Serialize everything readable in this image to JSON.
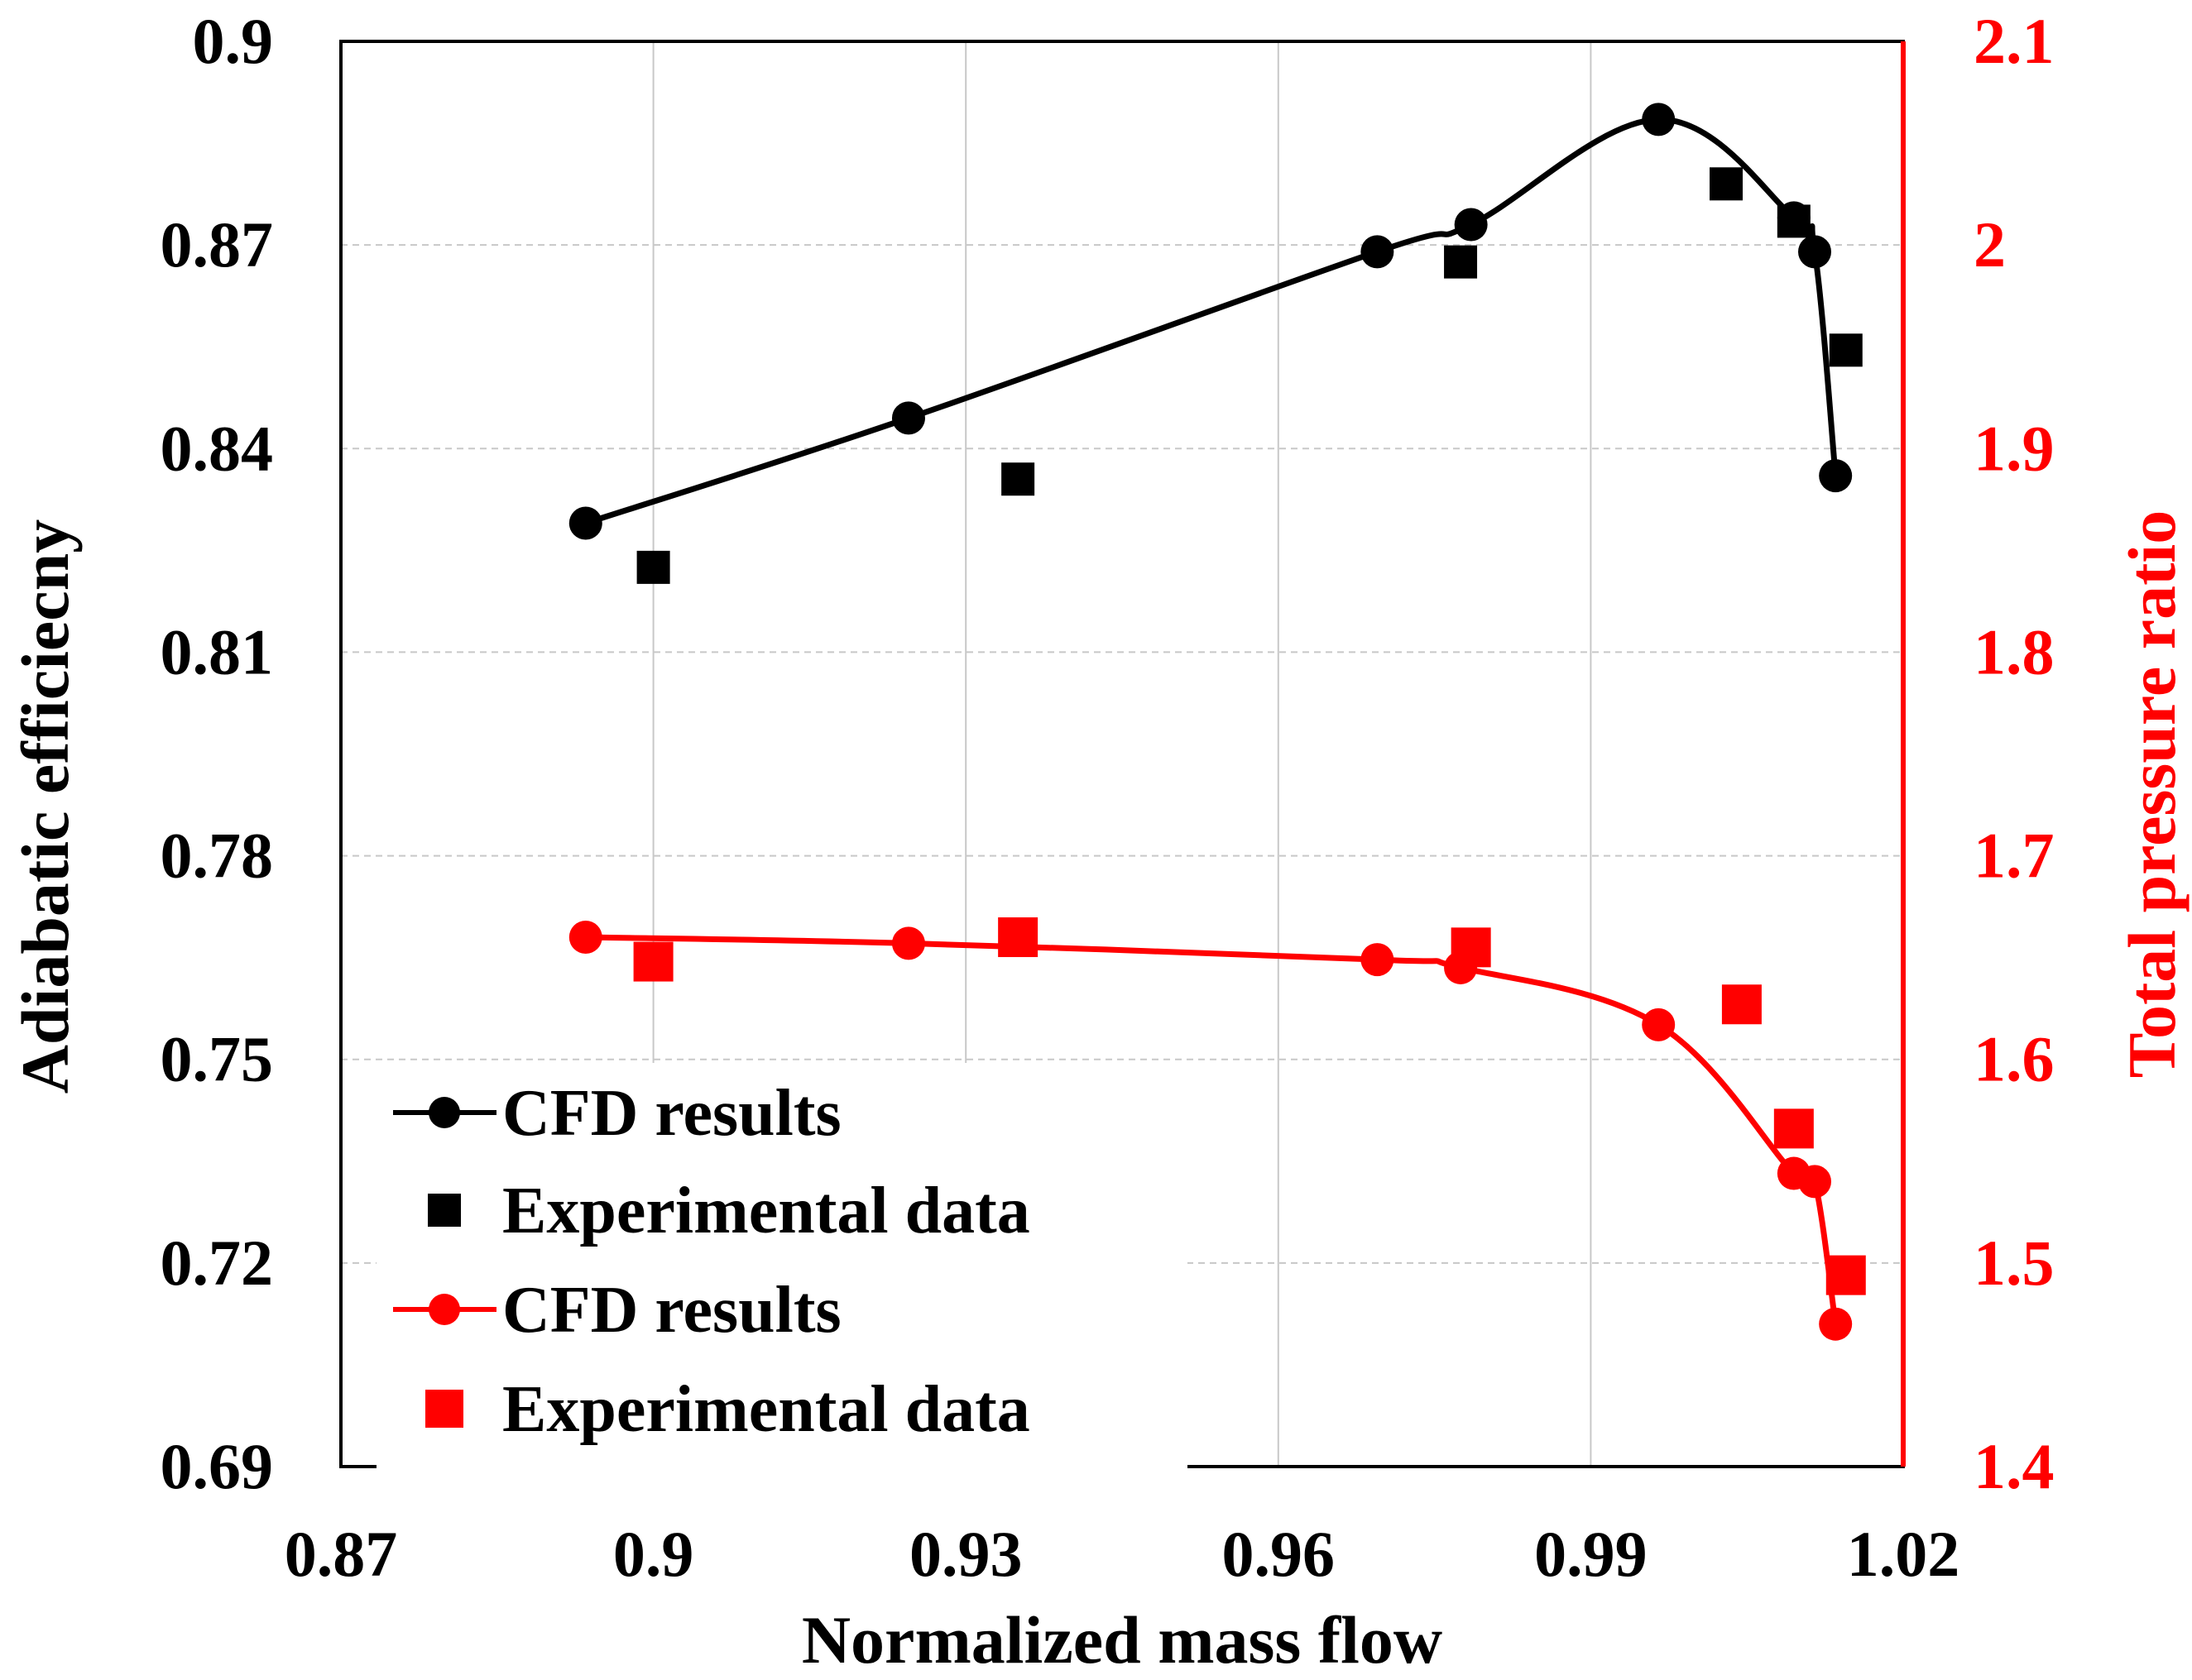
{
  "chart_data": {
    "type": "line",
    "xlabel": "Normalized mass flow",
    "ylabel": "Adiabatic efficiecny",
    "y2label": "Total pressure ratio",
    "xlim": [
      0.87,
      1.02
    ],
    "ylim": [
      0.69,
      0.9
    ],
    "y2lim": [
      1.4,
      2.1
    ],
    "x_ticks": [
      "0.87",
      "0.9",
      "0.93",
      "0.96",
      "0.99",
      "1.02"
    ],
    "y_ticks": [
      "0.69",
      "0.72",
      "0.75",
      "0.78",
      "0.81",
      "0.84",
      "0.87",
      "0.9"
    ],
    "y2_ticks": [
      "1.4",
      "1.5",
      "1.6",
      "1.7",
      "1.8",
      "1.9",
      "2",
      "2.1"
    ],
    "grid": true,
    "legend_position": "bottom-left",
    "series": [
      {
        "name": "CFD results",
        "axis": "left",
        "color": "#000000",
        "marker": "circle",
        "line": true,
        "x": [
          0.8935,
          0.9245,
          0.9695,
          0.9785,
          0.9965,
          1.0095,
          1.0115,
          1.0135
        ],
        "y": [
          0.829,
          0.8445,
          0.869,
          0.873,
          0.8885,
          0.874,
          0.869,
          0.836
        ]
      },
      {
        "name": "Experimental data",
        "axis": "left",
        "color": "#000000",
        "marker": "square",
        "line": false,
        "x": [
          0.9,
          0.935,
          0.9775,
          1.003,
          1.0095,
          1.0145
        ],
        "y": [
          0.8225,
          0.8355,
          0.8675,
          0.879,
          0.8735,
          0.8545
        ]
      },
      {
        "name": "CFD results",
        "axis": "right",
        "color": "#ff0000",
        "marker": "circle",
        "line": true,
        "x": [
          0.8935,
          0.9245,
          0.9695,
          0.9775,
          0.9965,
          1.0095,
          1.0115,
          1.0135
        ],
        "y": [
          1.66,
          1.657,
          1.649,
          1.645,
          1.617,
          1.544,
          1.54,
          1.47
        ]
      },
      {
        "name": "Experimental data",
        "axis": "right",
        "color": "#ff0000",
        "marker": "square",
        "line": false,
        "x": [
          0.9,
          0.935,
          0.9785,
          1.0045,
          1.0095,
          1.0145
        ],
        "y": [
          1.648,
          1.66,
          1.655,
          1.627,
          1.566,
          1.494
        ]
      }
    ],
    "legend": [
      {
        "label": "CFD results"
      },
      {
        "label": "Experimental data"
      },
      {
        "label": "CFD results"
      },
      {
        "label": "Experimental data"
      }
    ]
  }
}
